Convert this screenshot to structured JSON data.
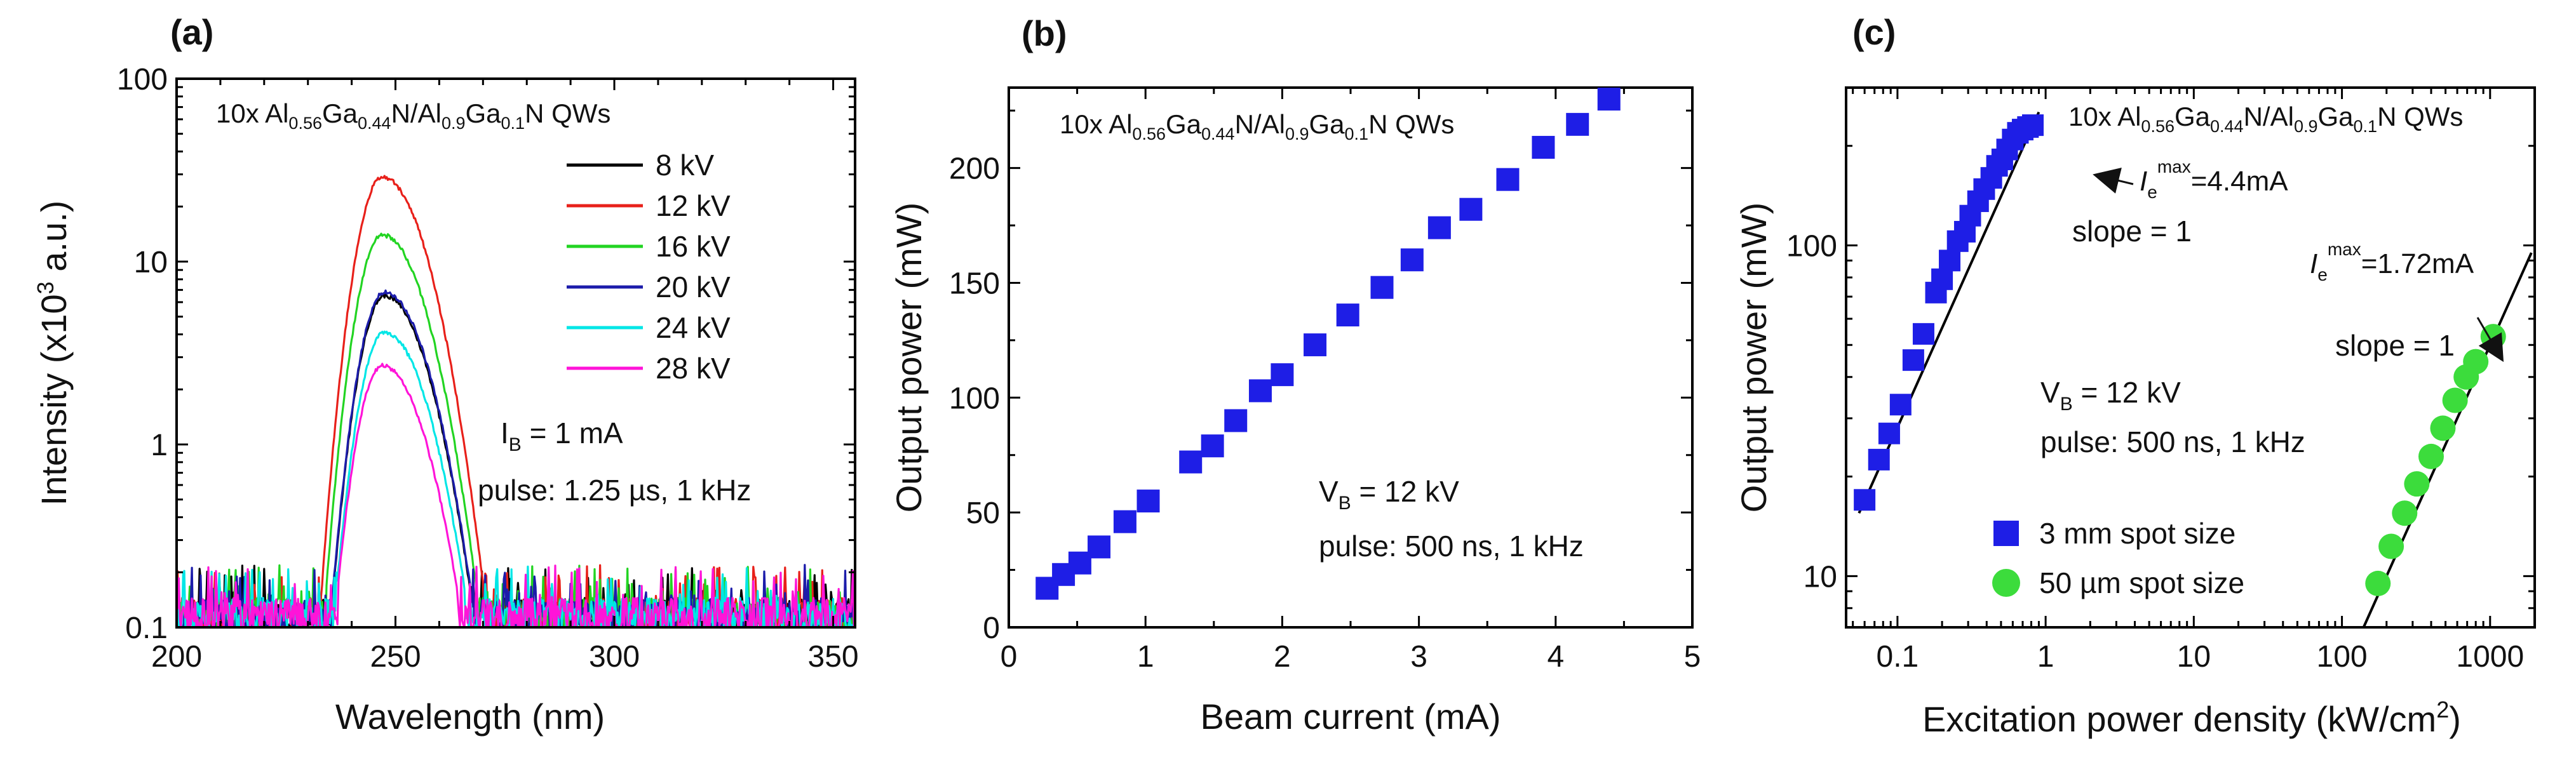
{
  "chart_data": [
    {
      "panel_label": "(a)",
      "type": "line",
      "xlabel": "Wavelength (nm)",
      "ylabel_main": "Intensity (x10",
      "ylabel_sup": "3",
      "ylabel_tail": " a.u.)",
      "xlim": [
        200,
        355
      ],
      "ylim": [
        0.1,
        100
      ],
      "yscale": "log",
      "xticks": [
        200,
        250,
        300,
        350
      ],
      "xtick_labels": [
        "200",
        "250",
        "300",
        "350"
      ],
      "yticks": [
        0.1,
        1,
        10,
        100
      ],
      "ytick_labels": [
        "0.1",
        "1",
        "10",
        "100"
      ],
      "series": [
        {
          "name": "8 kV",
          "color": "#000000",
          "peak": 6.5,
          "peak_x": 247.5
        },
        {
          "name": "12 kV",
          "color": "#e8201a",
          "peak": 29,
          "peak_x": 247
        },
        {
          "name": "16 kV",
          "color": "#22d422",
          "peak": 14,
          "peak_x": 247
        },
        {
          "name": "20 kV",
          "color": "#1c1caa",
          "peak": 6.8,
          "peak_x": 247.5
        },
        {
          "name": "24 kV",
          "color": "#00e6e6",
          "peak": 4.1,
          "peak_x": 247.5
        },
        {
          "name": "28 kV",
          "color": "#ff14d8",
          "peak": 2.7,
          "peak_x": 247
        }
      ],
      "annotations": {
        "qw": {
          "pre": "10x Al",
          "s1": "0.56",
          "m1": "Ga",
          "s2": "0.44",
          "m2": "N/Al",
          "s3": "0.9",
          "m3": "Ga",
          "s4": "0.1",
          "post": "N QWs"
        },
        "ib": {
          "pre": "I",
          "sub": "B",
          "post": " = 1 mA"
        },
        "pulse": "pulse: 1.25 µs, 1 kHz"
      }
    },
    {
      "panel_label": "(b)",
      "type": "scatter",
      "xlabel": "Beam current (mA)",
      "ylabel": "Output power (mW)",
      "xlim": [
        0,
        5
      ],
      "ylim": [
        0,
        235
      ],
      "xticks": [
        0,
        1,
        2,
        3,
        4,
        5
      ],
      "xtick_labels": [
        "0",
        "1",
        "2",
        "3",
        "4",
        "5"
      ],
      "yticks": [
        0,
        50,
        100,
        150,
        200
      ],
      "ytick_labels": [
        "0",
        "50",
        "100",
        "150",
        "200"
      ],
      "marker_color": "#1e1ee6",
      "x": [
        0.28,
        0.4,
        0.52,
        0.66,
        0.85,
        1.02,
        1.33,
        1.49,
        1.66,
        1.84,
        2.0,
        2.24,
        2.48,
        2.73,
        2.95,
        3.15,
        3.38,
        3.65,
        3.91,
        4.16,
        4.39
      ],
      "y": [
        17,
        23,
        28,
        35,
        46,
        55,
        72,
        79,
        90,
        103,
        110,
        123,
        136,
        148,
        160,
        174,
        182,
        195,
        209,
        219,
        230
      ],
      "annotations": {
        "qw": {
          "pre": "10x Al",
          "s1": "0.56",
          "m1": "Ga",
          "s2": "0.44",
          "m2": "N/Al",
          "s3": "0.9",
          "m3": "Ga",
          "s4": "0.1",
          "post": "N QWs"
        },
        "vb": {
          "pre": "V",
          "sub": "B",
          "post": " = 12 kV"
        },
        "pulse": "pulse: 500 ns, 1 kHz"
      }
    },
    {
      "panel_label": "(c)",
      "type": "scatter",
      "xscale": "log",
      "yscale": "log",
      "xlabel_main": "Excitation power density (kW/cm",
      "xlabel_sup": "2",
      "xlabel_tail": ")",
      "ylabel": "Output power (mW)",
      "xlim": [
        0.045,
        2000
      ],
      "ylim": [
        7,
        300
      ],
      "xticks": [
        0.1,
        1,
        10,
        100,
        1000
      ],
      "xtick_labels": [
        "0.1",
        "1",
        "10",
        "100",
        "1000"
      ],
      "yticks": [
        10,
        100
      ],
      "ytick_labels": [
        "10",
        "100"
      ],
      "series": [
        {
          "name": "3 mm spot size",
          "marker": "square",
          "color": "#1e1ee6",
          "x": [
            0.06,
            0.075,
            0.088,
            0.105,
            0.128,
            0.15,
            0.182,
            0.2,
            0.225,
            0.255,
            0.285,
            0.31,
            0.35,
            0.385,
            0.43,
            0.47,
            0.51,
            0.55,
            0.6,
            0.65,
            0.7,
            0.76,
            0.82
          ],
          "y": [
            17,
            22.5,
            27,
            33,
            45,
            54,
            72,
            79,
            90,
            103,
            110,
            123,
            136,
            148,
            160,
            174,
            182,
            195,
            209,
            219,
            224,
            228,
            231
          ]
        },
        {
          "name": "50 µm spot size",
          "marker": "circle",
          "color": "#3cdc3c",
          "x": [
            175,
            215,
            265,
            320,
            400,
            480,
            580,
            690,
            800,
            1050
          ],
          "y": [
            9.5,
            12.3,
            15.5,
            19,
            23,
            28,
            34,
            40,
            44.5,
            53
          ]
        }
      ],
      "fit_lines": [
        {
          "label": "slope = 1",
          "x": [
            0.055,
            0.9
          ],
          "y": [
            15.5,
            253
          ]
        },
        {
          "label": "slope = 1",
          "x": [
            140,
            1900
          ],
          "y": [
            7,
            95
          ]
        }
      ],
      "annotations": {
        "qw": {
          "pre": "10x Al",
          "s1": "0.56",
          "m1": "Ga",
          "s2": "0.44",
          "m2": "N/Al",
          "s3": "0.9",
          "m3": "Ga",
          "s4": "0.1",
          "post": "N QWs"
        },
        "ie1": {
          "pre": "I",
          "sub": "e",
          "sup": "max",
          "post": "=4.4mA"
        },
        "ie2": {
          "pre": "I",
          "sub": "e",
          "sup": "max",
          "post": "=1.72mA"
        },
        "slope1": "slope = 1",
        "slope2": "slope = 1",
        "vb": {
          "pre": "V",
          "sub": "B",
          "post": " = 12 kV"
        },
        "pulse": "pulse: 500 ns, 1 kHz"
      }
    }
  ]
}
